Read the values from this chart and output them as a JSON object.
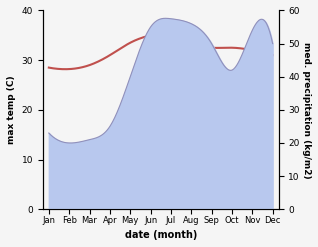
{
  "months": [
    "Jan",
    "Feb",
    "Mar",
    "Apr",
    "May",
    "Jun",
    "Jul",
    "Aug",
    "Sep",
    "Oct",
    "Nov",
    "Dec"
  ],
  "x": [
    0,
    1,
    2,
    3,
    4,
    5,
    6,
    7,
    8,
    9,
    10,
    11
  ],
  "temp": [
    28.5,
    28.2,
    29.0,
    31.0,
    33.5,
    35.0,
    35.2,
    33.5,
    32.5,
    32.5,
    32.0,
    31.0
  ],
  "precip": [
    23.0,
    20.0,
    21.0,
    25.0,
    40.0,
    55.0,
    57.5,
    56.0,
    50.0,
    42.0,
    54.0,
    50.0
  ],
  "temp_color": "#c0504d",
  "precip_fill_color": "#b8c8ee",
  "precip_line_color": "#9090bb",
  "ylabel_left": "max temp (C)",
  "ylabel_right": "med. precipitation (kg/m2)",
  "xlabel": "date (month)",
  "ylim_left": [
    0,
    40
  ],
  "ylim_right": [
    0,
    60
  ],
  "yticks_left": [
    0,
    10,
    20,
    30,
    40
  ],
  "yticks_right": [
    0,
    10,
    20,
    30,
    40,
    50,
    60
  ],
  "bg_color": "#f5f5f5"
}
